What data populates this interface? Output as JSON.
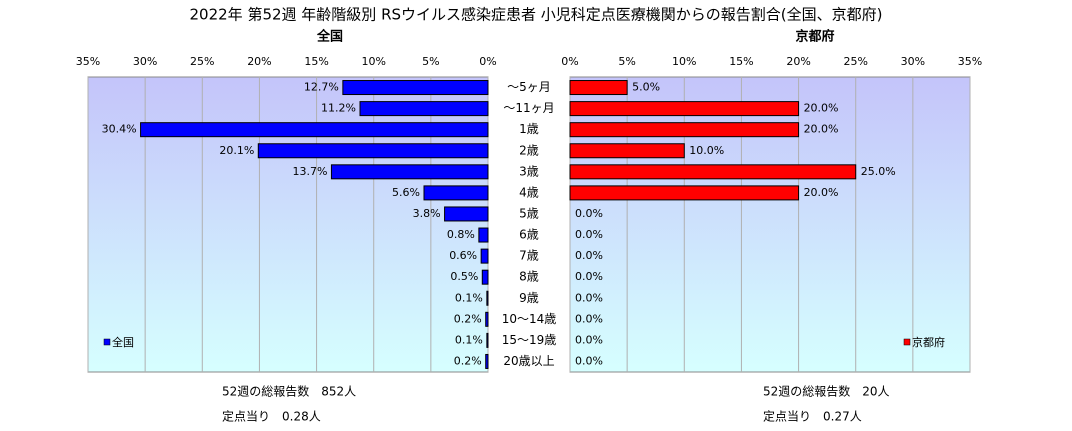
{
  "title": "2022年 第52週 年齢階級別 RSウイルス感染症患者 小児科定点医療機関からの報告割合(全国、京都府)",
  "chart_data": [
    {
      "type": "barh",
      "subtitle": "全国",
      "legend": "全国",
      "color": "#0000ff",
      "legend_corner": "lower left",
      "grid": true,
      "categories": [
        "～5ヶ月",
        "～11ヶ月",
        "1歳",
        "2歳",
        "3歳",
        "4歳",
        "5歳",
        "6歳",
        "7歳",
        "8歳",
        "9歳",
        "10～14歳",
        "15～19歳",
        "20歳以上"
      ],
      "values": [
        12.7,
        11.2,
        30.4,
        20.1,
        13.7,
        5.6,
        3.8,
        0.8,
        0.6,
        0.5,
        0.1,
        0.2,
        0.1,
        0.2
      ],
      "value_labels": [
        "12.7%",
        "11.2%",
        "30.4%",
        "20.1%",
        "13.7%",
        "5.6%",
        "3.8%",
        "0.8%",
        "0.6%",
        "0.5%",
        "0.1%",
        "0.2%",
        "0.1%",
        "0.2%"
      ],
      "xlim": [
        35,
        0
      ],
      "xticks": [
        {
          "value": 35,
          "label": "35%"
        },
        {
          "value": 30,
          "label": "30%"
        },
        {
          "value": 25,
          "label": "25%"
        },
        {
          "value": 20,
          "label": "20%"
        },
        {
          "value": 15,
          "label": "15%"
        },
        {
          "value": 10,
          "label": "10%"
        },
        {
          "value": 5,
          "label": "5%"
        },
        {
          "value": 0,
          "label": "0%"
        }
      ],
      "notes": [
        "52週の総報告数　852人",
        "定点当り　0.28人"
      ]
    },
    {
      "type": "barh",
      "subtitle": "京都府",
      "legend": "京都府",
      "color": "#ff0000",
      "legend_corner": "lower right",
      "grid": true,
      "values": [
        5.0,
        20.0,
        20.0,
        10.0,
        25.0,
        20.0,
        0,
        0,
        0,
        0,
        0,
        0,
        0,
        0
      ],
      "value_labels": [
        "5.0%",
        "20.0%",
        "20.0%",
        "10.0%",
        "25.0%",
        "20.0%",
        "0.0%",
        "0.0%",
        "0.0%",
        "0.0%",
        "0.0%",
        "0.0%",
        "0.0%",
        "0.0%"
      ],
      "xlim": [
        0,
        35
      ],
      "xticks": [
        {
          "value": 0,
          "label": "0%"
        },
        {
          "value": 5,
          "label": "5%"
        },
        {
          "value": 10,
          "label": "10%"
        },
        {
          "value": 15,
          "label": "15%"
        },
        {
          "value": 20,
          "label": "20%"
        },
        {
          "value": 25,
          "label": "25%"
        },
        {
          "value": 30,
          "label": "30%"
        },
        {
          "value": 35,
          "label": "35%"
        }
      ],
      "notes": [
        "52週の総報告数　20人",
        "定点当り　0.27人"
      ]
    }
  ]
}
